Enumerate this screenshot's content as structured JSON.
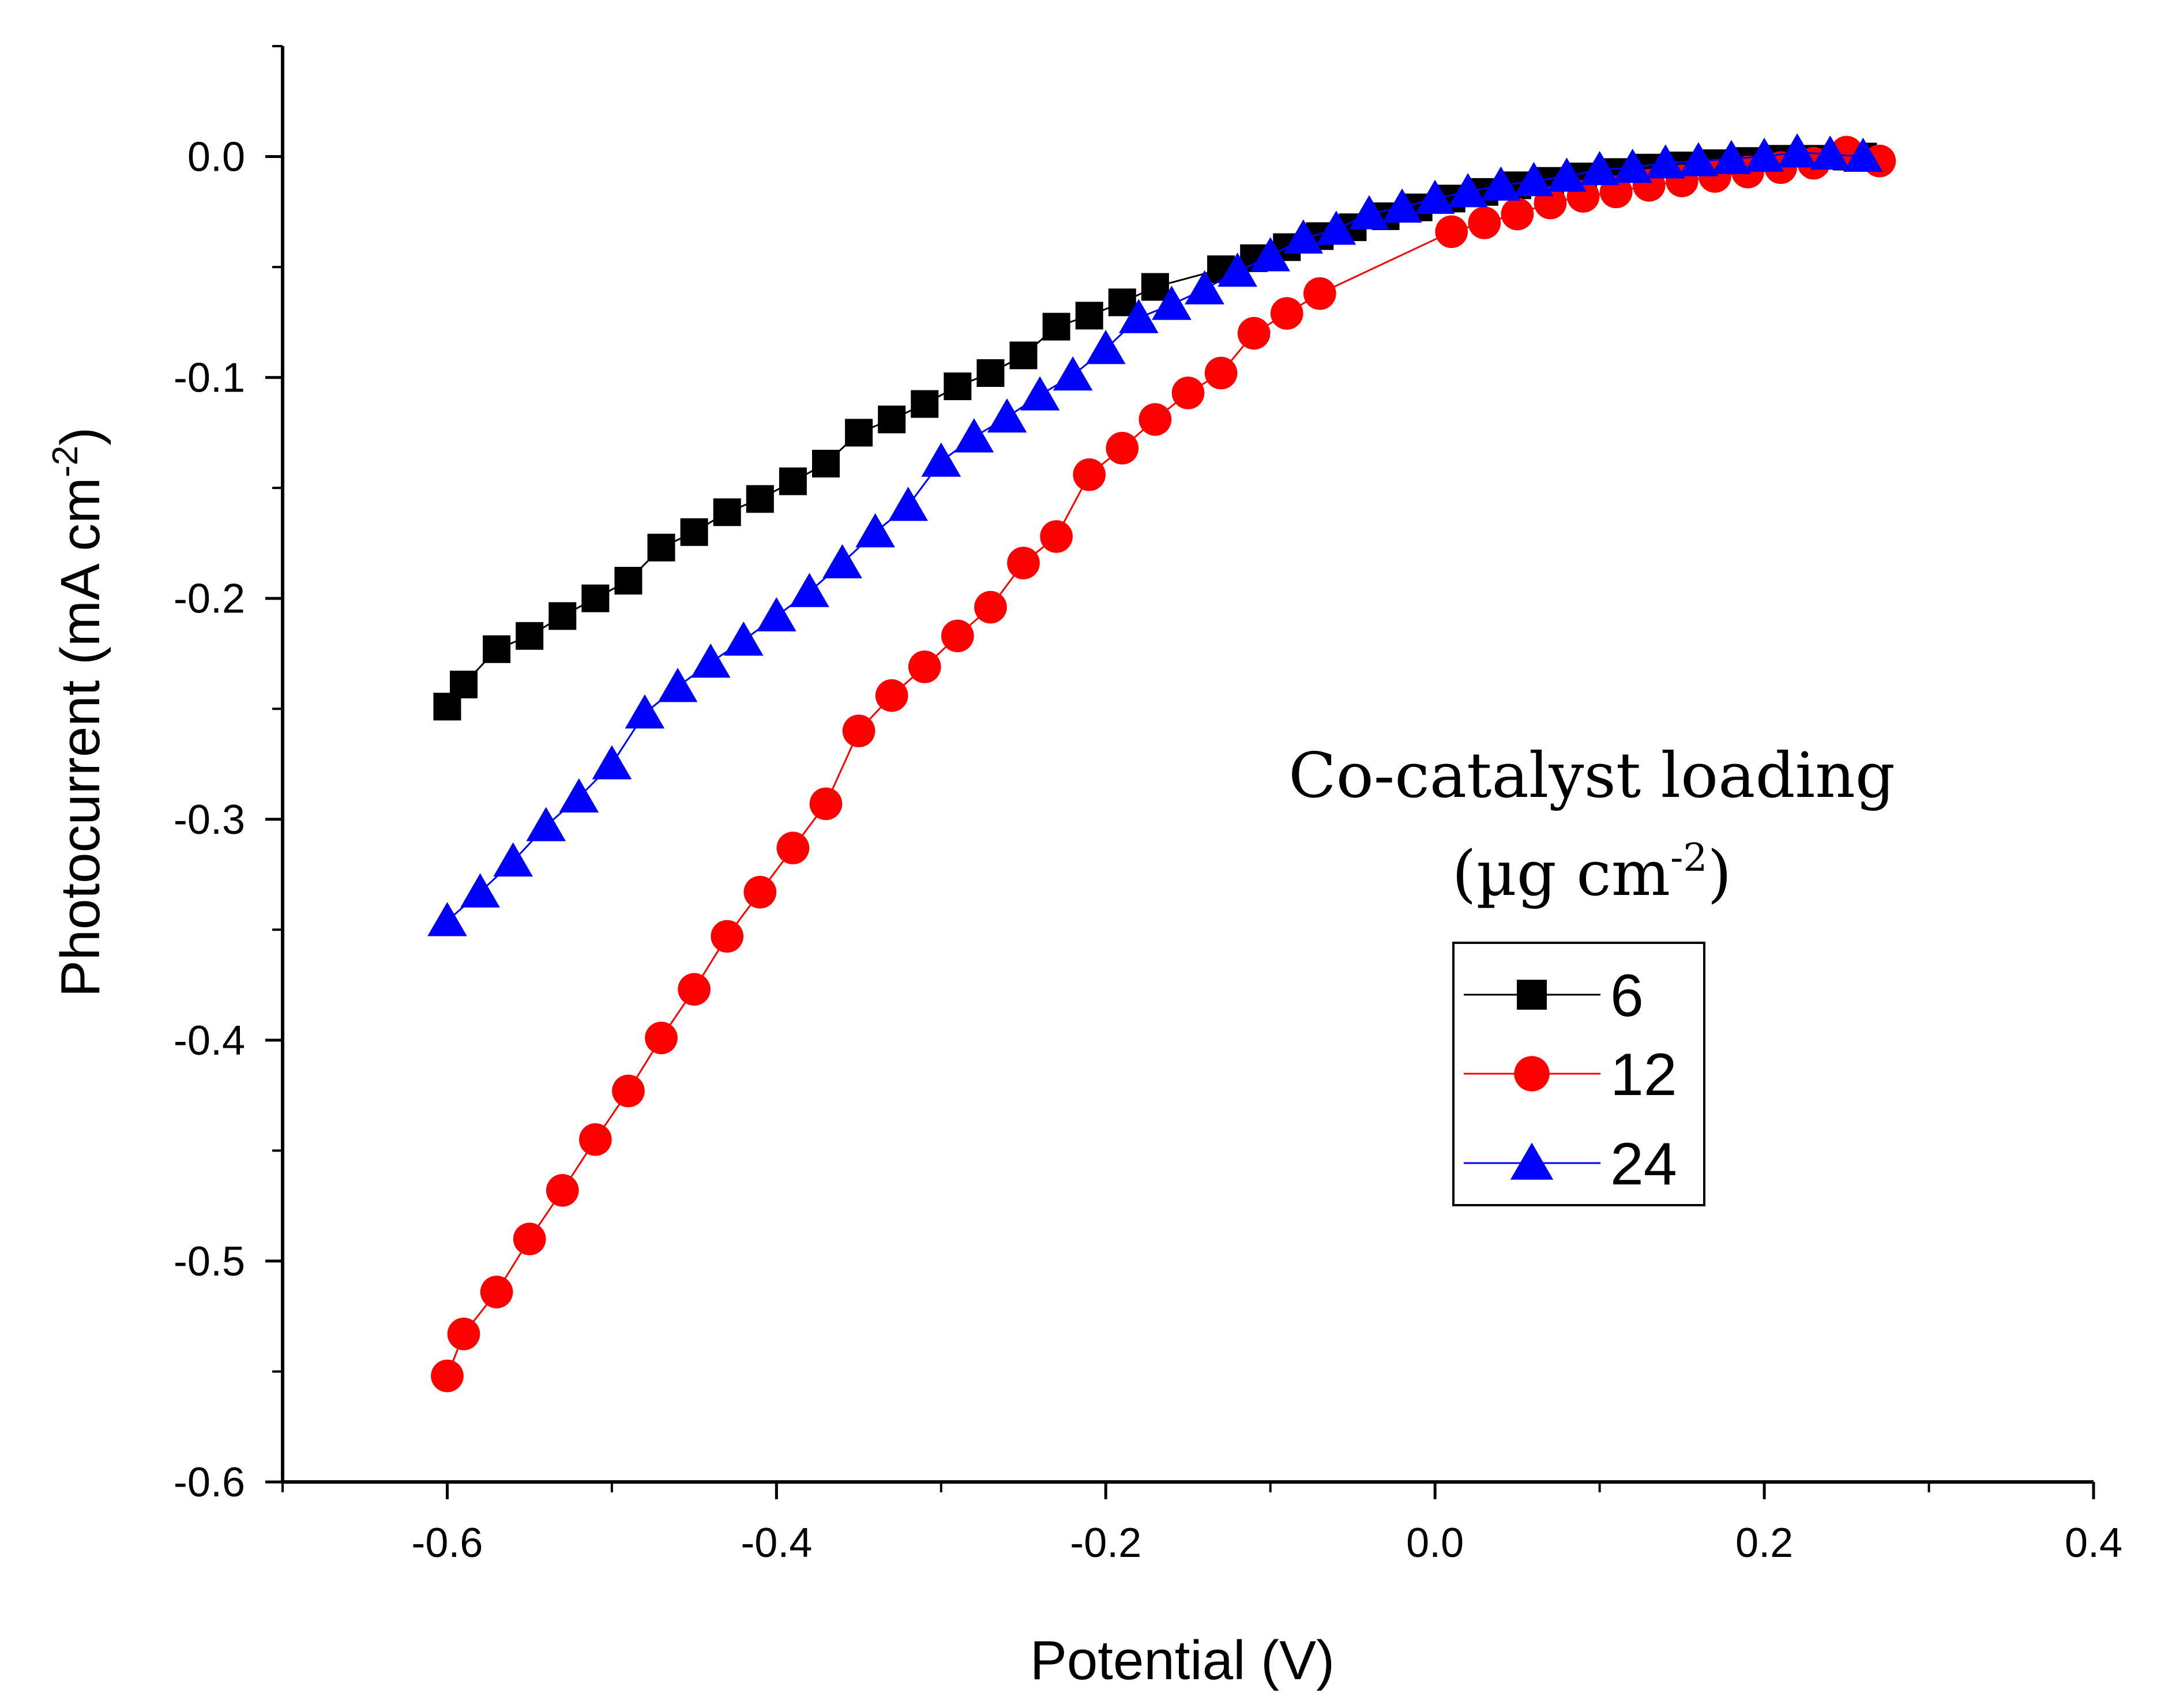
{
  "chart_data": {
    "type": "line",
    "title": "",
    "xlabel": "Potential (V)",
    "ylabel_main": "Photocurrent (mA cm",
    "ylabel_sup": "-2",
    "ylabel_close": ")",
    "xlim": [
      -0.7,
      0.4
    ],
    "ylim": [
      -0.6,
      0.05
    ],
    "x_major_ticks": [
      -0.6,
      -0.4,
      -0.2,
      0.0,
      0.2,
      0.4
    ],
    "x_tick_labels": [
      "-0.6",
      "-0.4",
      "-0.2",
      "0.0",
      "0.2",
      "0.4"
    ],
    "x_minor_ticks": [
      -0.7,
      -0.5,
      -0.3,
      -0.1,
      0.1,
      0.3
    ],
    "y_major_ticks": [
      0.0,
      -0.1,
      -0.2,
      -0.3,
      -0.4,
      -0.5,
      -0.6
    ],
    "y_tick_labels": [
      "0.0",
      "-0.1",
      "-0.2",
      "-0.3",
      "-0.4",
      "-0.5",
      "-0.6"
    ],
    "y_minor_ticks": [
      0.05,
      -0.05,
      -0.15,
      -0.25,
      -0.35,
      -0.45,
      -0.55
    ],
    "legend": {
      "title_line1": "Co-catalyst loading",
      "title_line2_open": "(µg cm",
      "title_line2_sup": "-2",
      "title_line2_close": ")",
      "placement": "right"
    },
    "series": [
      {
        "name": "6",
        "color": "#000000",
        "marker": "square",
        "x": [
          -0.6,
          -0.59,
          -0.57,
          -0.55,
          -0.53,
          -0.51,
          -0.49,
          -0.47,
          -0.45,
          -0.43,
          -0.41,
          -0.39,
          -0.37,
          -0.35,
          -0.33,
          -0.31,
          -0.29,
          -0.27,
          -0.25,
          -0.23,
          -0.21,
          -0.19,
          -0.17,
          -0.13,
          -0.11,
          -0.09,
          -0.07,
          -0.05,
          -0.03,
          -0.01,
          0.01,
          0.03,
          0.05,
          0.07,
          0.09,
          0.11,
          0.13,
          0.15,
          0.17,
          0.19,
          0.21,
          0.23,
          0.25,
          0.26
        ],
        "y": [
          -0.249,
          -0.239,
          -0.223,
          -0.217,
          -0.208,
          -0.2,
          -0.192,
          -0.177,
          -0.17,
          -0.161,
          -0.155,
          -0.147,
          -0.139,
          -0.125,
          -0.119,
          -0.112,
          -0.104,
          -0.098,
          -0.09,
          -0.077,
          -0.072,
          -0.066,
          -0.059,
          -0.051,
          -0.046,
          -0.041,
          -0.036,
          -0.032,
          -0.027,
          -0.023,
          -0.019,
          -0.016,
          -0.013,
          -0.011,
          -0.009,
          -0.007,
          -0.005,
          -0.004,
          -0.003,
          -0.002,
          -0.001,
          -0.001,
          0.0,
          0.0
        ]
      },
      {
        "name": "12",
        "color": "#ff0000",
        "marker": "circle",
        "x": [
          -0.6,
          -0.59,
          -0.57,
          -0.55,
          -0.53,
          -0.51,
          -0.49,
          -0.47,
          -0.45,
          -0.43,
          -0.41,
          -0.39,
          -0.37,
          -0.35,
          -0.33,
          -0.31,
          -0.29,
          -0.27,
          -0.25,
          -0.23,
          -0.21,
          -0.19,
          -0.17,
          -0.15,
          -0.13,
          -0.11,
          -0.09,
          -0.07,
          0.01,
          0.03,
          0.05,
          0.07,
          0.09,
          0.11,
          0.13,
          0.15,
          0.17,
          0.19,
          0.21,
          0.23,
          0.25,
          0.27
        ],
        "y": [
          -0.552,
          -0.533,
          -0.514,
          -0.49,
          -0.468,
          -0.445,
          -0.423,
          -0.399,
          -0.377,
          -0.353,
          -0.333,
          -0.313,
          -0.293,
          -0.26,
          -0.244,
          -0.231,
          -0.217,
          -0.204,
          -0.184,
          -0.172,
          -0.144,
          -0.132,
          -0.119,
          -0.107,
          -0.098,
          -0.08,
          -0.071,
          -0.062,
          -0.034,
          -0.03,
          -0.026,
          -0.021,
          -0.018,
          -0.016,
          -0.013,
          -0.011,
          -0.009,
          -0.007,
          -0.005,
          -0.003,
          0.002,
          -0.002
        ]
      },
      {
        "name": "24",
        "color": "#0000ff",
        "marker": "triangle",
        "x": [
          -0.6,
          -0.58,
          -0.56,
          -0.54,
          -0.52,
          -0.5,
          -0.48,
          -0.46,
          -0.44,
          -0.42,
          -0.4,
          -0.38,
          -0.36,
          -0.34,
          -0.32,
          -0.3,
          -0.28,
          -0.26,
          -0.24,
          -0.22,
          -0.2,
          -0.18,
          -0.16,
          -0.14,
          -0.12,
          -0.1,
          -0.08,
          -0.06,
          -0.04,
          -0.02,
          0.0,
          0.02,
          0.04,
          0.06,
          0.08,
          0.1,
          0.12,
          0.14,
          0.16,
          0.18,
          0.2,
          0.22,
          0.24,
          0.26
        ],
        "y": [
          -0.346,
          -0.333,
          -0.319,
          -0.303,
          -0.29,
          -0.275,
          -0.252,
          -0.24,
          -0.229,
          -0.219,
          -0.208,
          -0.197,
          -0.184,
          -0.17,
          -0.158,
          -0.138,
          -0.127,
          -0.118,
          -0.108,
          -0.099,
          -0.087,
          -0.073,
          -0.067,
          -0.06,
          -0.052,
          -0.045,
          -0.037,
          -0.033,
          -0.026,
          -0.023,
          -0.019,
          -0.016,
          -0.013,
          -0.011,
          -0.009,
          -0.006,
          -0.005,
          -0.003,
          -0.002,
          -0.001,
          0.0,
          0.002,
          0.001,
          0.0
        ]
      }
    ]
  }
}
